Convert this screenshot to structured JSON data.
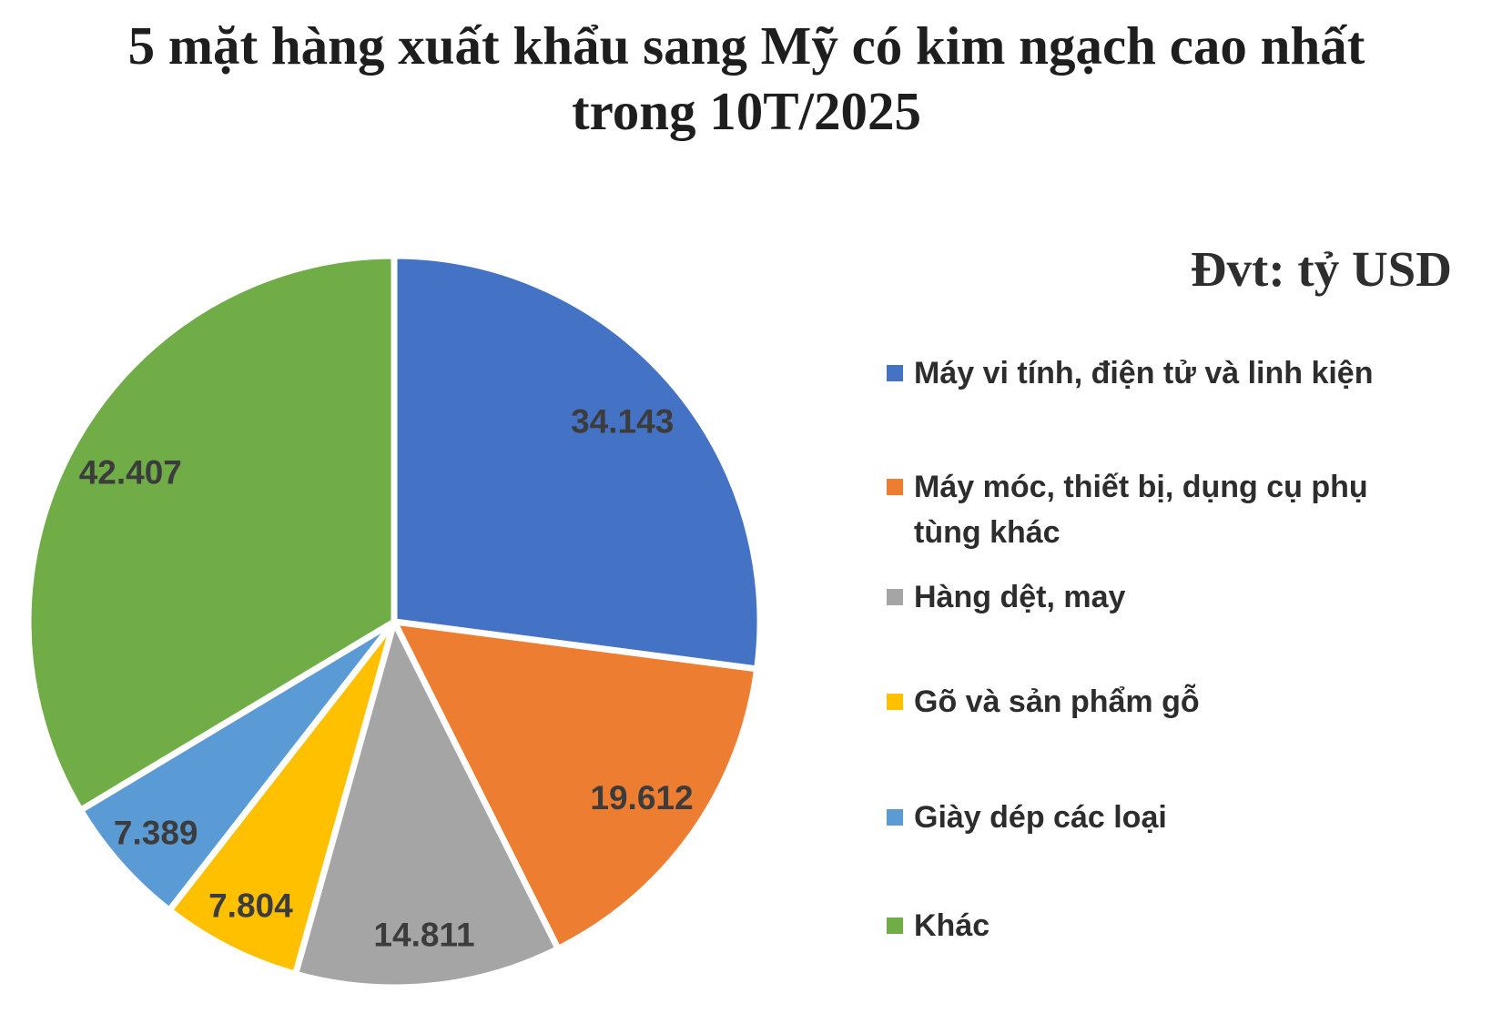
{
  "title": {
    "line1": "5 mặt hàng xuất khẩu sang Mỹ có kim ngạch cao nhất",
    "line2": "trong 10T/2025"
  },
  "unit_label": "Đvt: tỷ USD",
  "chart_data": {
    "type": "pie",
    "title": "5 mặt hàng xuất khẩu sang Mỹ có kim ngạch cao nhất trong 10T/2025",
    "unit": "Đvt: tỷ USD",
    "legend_position": "right",
    "start_angle_deg": 0,
    "direction": "clockwise",
    "series": [
      {
        "label": "Máy vi tính, điện tử và linh kiện",
        "value": 34.143,
        "display": "34.143",
        "color": "#4472C4"
      },
      {
        "label": "Máy móc, thiết bị, dụng cụ phụ tùng khác",
        "value": 19.612,
        "display": "19.612",
        "color": "#ED7D31"
      },
      {
        "label": "Hàng dệt, may",
        "value": 14.811,
        "display": "14.811",
        "color": "#A5A5A5"
      },
      {
        "label": "Gõ và sản phẩm gỗ",
        "value": 7.804,
        "display": "7.804",
        "color": "#FFC000"
      },
      {
        "label": "Giày dép các loại",
        "value": 7.389,
        "display": "7.389",
        "color": "#5B9BD5"
      },
      {
        "label": "Khác",
        "value": 42.407,
        "display": "42.407",
        "color": "#70AD47"
      }
    ]
  }
}
